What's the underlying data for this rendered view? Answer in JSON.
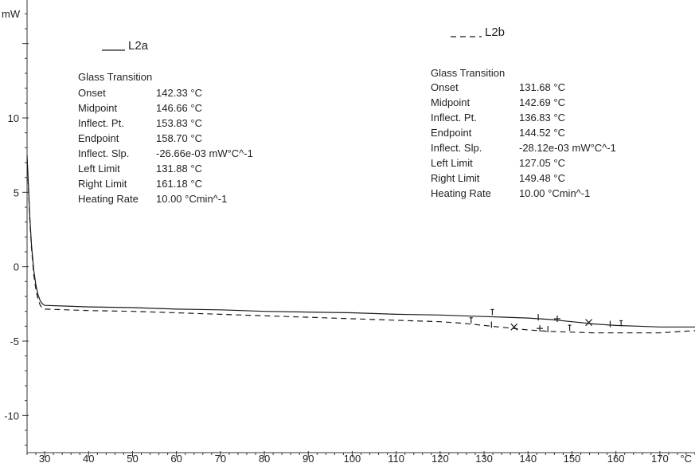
{
  "chart_data": {
    "type": "line",
    "x_unit": "°C",
    "y_unit": "mW",
    "xlim": [
      26,
      178
    ],
    "ylim": [
      -12.5,
      17.5
    ],
    "x_ticks": [
      30,
      40,
      50,
      60,
      70,
      80,
      90,
      100,
      110,
      120,
      130,
      140,
      150,
      160,
      170
    ],
    "y_ticks": [
      10,
      5,
      0,
      -5,
      -10
    ],
    "grid": false,
    "series": [
      {
        "name": "L2a",
        "style": "solid",
        "x": [
          26,
          26.3,
          26.6,
          27,
          27.5,
          28,
          28.5,
          29,
          29.5,
          30,
          35,
          40,
          50,
          60,
          70,
          80,
          90,
          100,
          110,
          120,
          125,
          130,
          135,
          140,
          145,
          150,
          155,
          160,
          165,
          170,
          175,
          178
        ],
        "y": [
          7.5,
          5.5,
          3.5,
          1.5,
          -0.2,
          -1.2,
          -1.9,
          -2.3,
          -2.5,
          -2.6,
          -2.65,
          -2.7,
          -2.75,
          -2.85,
          -2.9,
          -3.0,
          -3.05,
          -3.1,
          -3.2,
          -3.25,
          -3.3,
          -3.35,
          -3.4,
          -3.45,
          -3.55,
          -3.7,
          -3.85,
          -3.95,
          -4.0,
          -4.05,
          -4.05,
          -4.05
        ]
      },
      {
        "name": "L2b",
        "style": "dashed",
        "x": [
          26,
          26.3,
          26.6,
          27,
          27.5,
          28,
          28.5,
          29,
          29.5,
          30,
          35,
          40,
          50,
          60,
          70,
          80,
          90,
          100,
          110,
          120,
          125,
          130,
          135,
          140,
          145,
          150,
          155,
          160,
          165,
          170,
          175,
          178
        ],
        "y": [
          7.2,
          5.3,
          3.3,
          1.3,
          -0.5,
          -1.5,
          -2.2,
          -2.6,
          -2.8,
          -2.85,
          -2.9,
          -2.95,
          -3.0,
          -3.1,
          -3.2,
          -3.3,
          -3.4,
          -3.5,
          -3.6,
          -3.7,
          -3.8,
          -3.95,
          -4.1,
          -4.25,
          -4.35,
          -4.4,
          -4.45,
          -4.45,
          -4.45,
          -4.45,
          -4.35,
          -4.3
        ]
      }
    ],
    "markers": [
      {
        "series": "L2a",
        "x": 131.88,
        "y": -3.15,
        "symbol": "limit"
      },
      {
        "series": "L2a",
        "x": 142.33,
        "y": -3.4,
        "symbol": "tick"
      },
      {
        "series": "L2a",
        "x": 146.66,
        "y": -3.5,
        "symbol": "plus"
      },
      {
        "series": "L2a",
        "x": 153.83,
        "y": -3.75,
        "symbol": "cross"
      },
      {
        "series": "L2a",
        "x": 158.7,
        "y": -3.85,
        "symbol": "tick"
      },
      {
        "series": "L2a",
        "x": 161.18,
        "y": -3.9,
        "symbol": "limit"
      },
      {
        "series": "L2b",
        "x": 127.05,
        "y": -3.7,
        "symbol": "limit"
      },
      {
        "series": "L2b",
        "x": 131.68,
        "y": -3.9,
        "symbol": "tick"
      },
      {
        "series": "L2b",
        "x": 136.83,
        "y": -4.05,
        "symbol": "cross"
      },
      {
        "series": "L2b",
        "x": 142.69,
        "y": -4.15,
        "symbol": "plus"
      },
      {
        "series": "L2b",
        "x": 144.52,
        "y": -4.2,
        "symbol": "tick"
      },
      {
        "series": "L2b",
        "x": 149.48,
        "y": -4.2,
        "symbol": "limit"
      }
    ]
  },
  "legend": {
    "l2a": {
      "label": "L2a",
      "style": "solid"
    },
    "l2b": {
      "label": "L2b",
      "style": "dashed"
    }
  },
  "annotations": {
    "l2a": {
      "title": "Glass Transition",
      "rows": [
        {
          "label": "Onset",
          "value": "142.33 °C"
        },
        {
          "label": "Midpoint",
          "value": "146.66 °C"
        },
        {
          "label": "Inflect. Pt.",
          "value": "153.83 °C"
        },
        {
          "label": "Endpoint",
          "value": "158.70 °C"
        },
        {
          "label": "Inflect. Slp.",
          "value": "-26.66e-03 mW°C^-1"
        },
        {
          "label": "Left Limit",
          "value": "131.88 °C"
        },
        {
          "label": "Right Limit",
          "value": "161.18 °C"
        },
        {
          "label": "Heating Rate",
          "value": "10.00 °Cmin^-1"
        }
      ]
    },
    "l2b": {
      "title": "Glass Transition",
      "rows": [
        {
          "label": "Onset",
          "value": "131.68 °C"
        },
        {
          "label": "Midpoint",
          "value": "142.69 °C"
        },
        {
          "label": "Inflect. Pt.",
          "value": "136.83 °C"
        },
        {
          "label": "Endpoint",
          "value": "144.52 °C"
        },
        {
          "label": "Inflect. Slp.",
          "value": "-28.12e-03 mW°C^-1"
        },
        {
          "label": "Left Limit",
          "value": "127.05 °C"
        },
        {
          "label": "Right Limit",
          "value": "149.48 °C"
        },
        {
          "label": "Heating Rate",
          "value": "10.00 °Cmin^-1"
        }
      ]
    }
  },
  "colors": {
    "line": "#1a1a1a",
    "axis": "#333333",
    "text": "#222222"
  }
}
